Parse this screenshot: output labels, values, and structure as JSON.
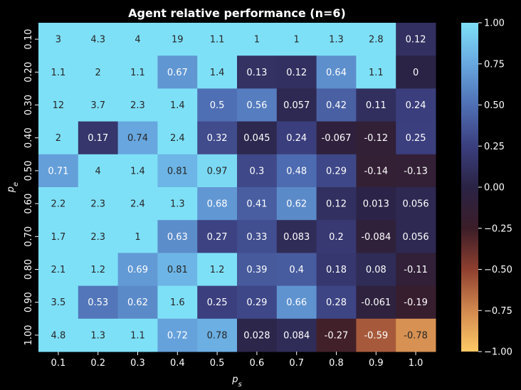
{
  "chart_data": {
    "type": "heatmap",
    "title": "Agent relative performance (n=6)",
    "xlabel": "p_s",
    "ylabel": "p_e",
    "x_categories": [
      "0.1",
      "0.2",
      "0.3",
      "0.4",
      "0.5",
      "0.6",
      "0.7",
      "0.8",
      "0.9",
      "1.0"
    ],
    "y_categories": [
      "0.10",
      "0.20",
      "0.30",
      "0.40",
      "0.50",
      "0.60",
      "0.70",
      "0.80",
      "0.90",
      "1.00"
    ],
    "values": [
      [
        3,
        4.3,
        4,
        19,
        1.1,
        1,
        1,
        1.3,
        2.8,
        0.12
      ],
      [
        1.1,
        2,
        1.1,
        0.67,
        1.4,
        0.13,
        0.12,
        0.64,
        1.1,
        0
      ],
      [
        12,
        3.7,
        2.3,
        1.4,
        0.5,
        0.56,
        0.057,
        0.42,
        0.11,
        0.24
      ],
      [
        2,
        0.17,
        0.74,
        2.4,
        0.32,
        0.045,
        0.24,
        -0.067,
        -0.12,
        0.25
      ],
      [
        0.71,
        4,
        1.4,
        0.81,
        0.97,
        0.3,
        0.48,
        0.29,
        -0.14,
        -0.13
      ],
      [
        2.2,
        2.3,
        2.4,
        1.3,
        0.68,
        0.41,
        0.62,
        0.12,
        0.013,
        0.056
      ],
      [
        1.7,
        2.3,
        1,
        0.63,
        0.27,
        0.33,
        0.083,
        0.2,
        -0.084,
        0.056
      ],
      [
        2.1,
        1.2,
        0.69,
        0.81,
        1.2,
        0.39,
        0.4,
        0.18,
        0.08,
        -0.11
      ],
      [
        3.5,
        0.53,
        0.62,
        1.6,
        0.25,
        0.29,
        0.66,
        0.28,
        -0.061,
        -0.19
      ],
      [
        4.8,
        1.3,
        1.1,
        0.72,
        0.78,
        0.028,
        0.084,
        -0.27,
        -0.59,
        -0.78
      ]
    ],
    "labels": [
      [
        "3",
        "4.3",
        "4",
        "19",
        "1.1",
        "1",
        "1",
        "1.3",
        "2.8",
        "0.12"
      ],
      [
        "1.1",
        "2",
        "1.1",
        "0.67",
        "1.4",
        "0.13",
        "0.12",
        "0.64",
        "1.1",
        "0"
      ],
      [
        "12",
        "3.7",
        "2.3",
        "1.4",
        "0.5",
        "0.56",
        "0.057",
        "0.42",
        "0.11",
        "0.24"
      ],
      [
        "2",
        "0.17",
        "0.74",
        "2.4",
        "0.32",
        "0.045",
        "0.24",
        "-0.067",
        "-0.12",
        "0.25"
      ],
      [
        "0.71",
        "4",
        "1.4",
        "0.81",
        "0.97",
        "0.3",
        "0.48",
        "0.29",
        "-0.14",
        "-0.13"
      ],
      [
        "2.2",
        "2.3",
        "2.4",
        "1.3",
        "0.68",
        "0.41",
        "0.62",
        "0.12",
        "0.013",
        "0.056"
      ],
      [
        "1.7",
        "2.3",
        "1",
        "0.63",
        "0.27",
        "0.33",
        "0.083",
        "0.2",
        "-0.084",
        "0.056"
      ],
      [
        "2.1",
        "1.2",
        "0.69",
        "0.81",
        "1.2",
        "0.39",
        "0.4",
        "0.18",
        "0.08",
        "-0.11"
      ],
      [
        "3.5",
        "0.53",
        "0.62",
        "1.6",
        "0.25",
        "0.29",
        "0.66",
        "0.28",
        "-0.061",
        "-0.19"
      ],
      [
        "4.8",
        "1.3",
        "1.1",
        "0.72",
        "0.78",
        "0.028",
        "0.084",
        "-0.27",
        "-0.59",
        "-0.78"
      ]
    ],
    "colorbar": {
      "vmin": -1.0,
      "vmax": 1.0,
      "ticks": [
        -1.0,
        -0.75,
        -0.5,
        -0.25,
        0.0,
        0.25,
        0.5,
        0.75,
        1.0
      ],
      "tick_labels": [
        "−1.00",
        "−0.75",
        "−0.50",
        "−0.25",
        "0.00",
        "0.25",
        "0.50",
        "0.75",
        "1.00"
      ],
      "colormap": "diverging: orange (low) → dark (zero) → light blue (high)",
      "color_stops": [
        "#fdc966",
        "#d2894f",
        "#8e3f2f",
        "#3b1d28",
        "#2a2345",
        "#3b3f7e",
        "#4f6fb4",
        "#68a8e0",
        "#7ee0f7"
      ]
    },
    "grid": false,
    "legend": "colorbar-right"
  },
  "colors": {
    "background": "#000000",
    "text": "#ffffff",
    "cell_text_light": "#ffffff",
    "cell_text_dark": "#262626"
  }
}
